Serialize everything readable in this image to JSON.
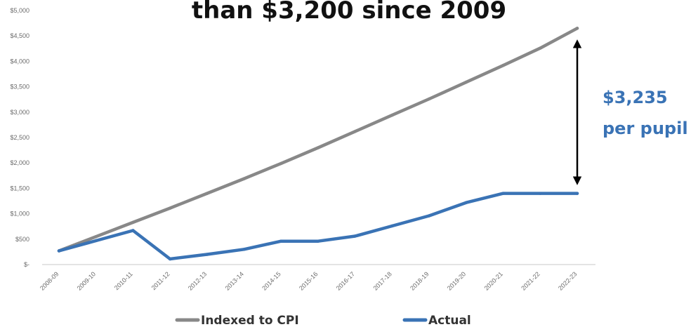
{
  "chart_data": {
    "type": "line",
    "title": "than $3,200 since 2009",
    "xlabel": "",
    "ylabel": "",
    "categories": [
      "2008-09",
      "2009-10",
      "2010-11",
      "2011-12",
      "2012-13",
      "2013-14",
      "2014-15",
      "2015-16",
      "2016-17",
      "2017-18",
      "2018-19",
      "2019-20",
      "2020-21",
      "2021-22",
      "2022-23"
    ],
    "y_ticks": [
      "$-",
      "$500",
      "$1,000",
      "$1,500",
      "$2,000",
      "$2,500",
      "$3,000",
      "$3,500",
      "$4,000",
      "$4,500",
      "$5,000"
    ],
    "ylim": [
      0,
      5000
    ],
    "grid": false,
    "legend_position": "bottom",
    "series": [
      {
        "name": "Indexed to CPI",
        "color": "#888888",
        "values": [
          270,
          550,
          830,
          1110,
          1400,
          1690,
          1990,
          2300,
          2620,
          2940,
          3260,
          3590,
          3920,
          4260,
          4650
        ]
      },
      {
        "name": "Actual",
        "color": "#3a73b5",
        "values": [
          270,
          470,
          670,
          110,
          200,
          300,
          460,
          460,
          560,
          760,
          960,
          1220,
          1400,
          1400,
          1400
        ]
      }
    ],
    "annotation": {
      "line1": "$3,235",
      "line2": "per pupil",
      "color": "#3a73b5",
      "category": "2022-23",
      "from_value": 1400,
      "to_value": 4650
    }
  }
}
